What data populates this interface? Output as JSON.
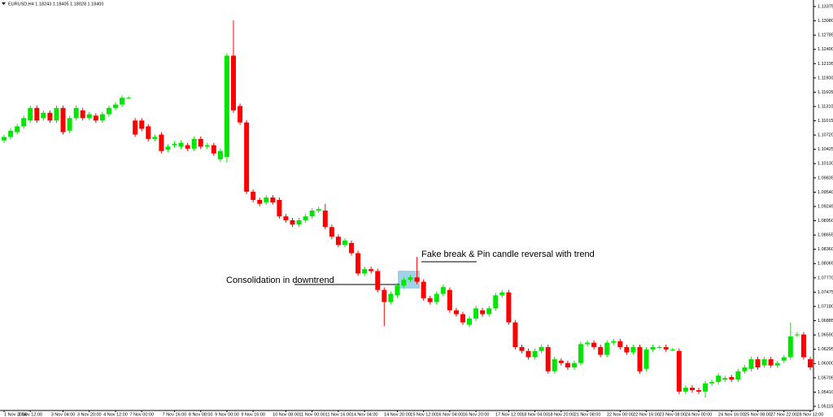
{
  "chart_data": {
    "type": "candlestick",
    "symbol": "EURUSD,H4  1.18243 1.18405 1.18028 1.18400",
    "annotations": [
      "Consolidation in downtrend",
      "Fake break & Pin candle reversal with trend"
    ],
    "up_color": "#00e600",
    "down_color": "#ff0000",
    "ylim": [
      1.0503,
      1.1351
    ],
    "yticks": [
      {
        "value": 1.13375,
        "label": "1.13375"
      },
      {
        "value": 1.1308,
        "label": "1.13080"
      },
      {
        "value": 1.12785,
        "label": "1.12785"
      },
      {
        "value": 1.1249,
        "label": "1.12490"
      },
      {
        "value": 1.12195,
        "label": "1.12195"
      },
      {
        "value": 1.119,
        "label": "1.11900"
      },
      {
        "value": 1.11605,
        "label": "1.11605"
      },
      {
        "value": 1.1131,
        "label": "1.11310"
      },
      {
        "value": 1.11015,
        "label": "1.11015"
      },
      {
        "value": 1.1072,
        "label": "1.10720"
      },
      {
        "value": 1.10425,
        "label": "1.10425"
      },
      {
        "value": 1.1013,
        "label": "1.10130"
      },
      {
        "value": 1.09835,
        "label": "1.09835"
      },
      {
        "value": 1.0954,
        "label": "1.09540"
      },
      {
        "value": 1.09245,
        "label": "1.09245"
      },
      {
        "value": 1.0895,
        "label": "1.08950"
      },
      {
        "value": 1.08655,
        "label": "1.08655"
      },
      {
        "value": 1.0836,
        "label": "1.08360"
      },
      {
        "value": 1.08065,
        "label": "1.08065"
      },
      {
        "value": 1.0777,
        "label": "1.07770"
      },
      {
        "value": 1.07475,
        "label": "1.07475"
      },
      {
        "value": 1.0718,
        "label": "1.07180"
      },
      {
        "value": 1.06885,
        "label": "1.06885"
      },
      {
        "value": 1.0659,
        "label": "1.06590"
      },
      {
        "value": 1.06295,
        "label": "1.06295"
      },
      {
        "value": 1.06,
        "label": "1.06000"
      },
      {
        "value": 1.05705,
        "label": "1.05705"
      },
      {
        "value": 1.0541,
        "label": "1.05410"
      },
      {
        "value": 1.05115,
        "label": "1.05115"
      }
    ],
    "categories": [
      "1 Nov 2016",
      null,
      null,
      null,
      "2 Nov 12:00",
      null,
      null,
      null,
      null,
      "3 Nov 04:00",
      null,
      null,
      null,
      "3 Nov 20:00",
      null,
      null,
      null,
      "4 Nov 12:00",
      null,
      null,
      null,
      "7 Nov 00:00",
      null,
      null,
      null,
      null,
      "7 Nov 16:00",
      null,
      null,
      null,
      "8 Nov 08:00",
      null,
      null,
      null,
      "9 Nov 00:00",
      null,
      null,
      null,
      "9 Nov 16:00",
      null,
      null,
      null,
      null,
      "10 Nov 08:00",
      null,
      null,
      null,
      "11 Nov 00:00",
      null,
      null,
      null,
      "11 Nov 16:00",
      null,
      null,
      null,
      "14 Nov 04:00",
      null,
      null,
      null,
      null,
      "14 Nov 20:00",
      null,
      null,
      null,
      "15 Nov 12:00",
      null,
      null,
      null,
      "16 Nov 04:00",
      null,
      null,
      null,
      "16 Nov 20:00",
      null,
      null,
      null,
      null,
      "17 Nov 12:00",
      null,
      null,
      null,
      "18 Nov 04:00",
      null,
      null,
      null,
      "18 Nov 20:00",
      null,
      null,
      null,
      "21 Nov 08:00",
      null,
      null,
      null,
      null,
      "22 Nov 00:00",
      null,
      null,
      null,
      "22 Nov 16:00",
      null,
      null,
      null,
      "23 Nov 08:00",
      null,
      null,
      null,
      "24 Nov 00:00",
      null,
      null,
      null,
      null,
      "24 Nov 16:00",
      null,
      null,
      null,
      "25 Nov 08:00",
      null,
      null,
      null,
      "27 Nov 22:00",
      null,
      null,
      null,
      "28 Nov 12:00"
    ],
    "open": [
      1.1061,
      1.1068,
      1.1078,
      1.109,
      1.1102,
      1.1128,
      1.1107,
      1.1118,
      1.1102,
      1.1128,
      1.1081,
      1.1107,
      1.1123,
      1.1107,
      1.1112,
      1.1102,
      1.1115,
      1.1128,
      1.1135,
      1.1149,
      1.1102,
      1.1102,
      1.109,
      1.1064,
      1.1073,
      1.1042,
      1.1051,
      1.1048,
      1.1051,
      1.1044,
      1.1064,
      1.1048,
      1.1051,
      1.1022,
      1.1027,
      1.1236,
      1.1132,
      1.1098,
      1.0955,
      1.0938,
      1.0933,
      1.0943,
      1.0938,
      1.0904,
      1.0896,
      1.0887,
      1.0896,
      1.0904,
      1.0916,
      1.0916,
      1.0882,
      1.0862,
      1.0845,
      1.0849,
      1.0828,
      1.0786,
      1.0795,
      1.0791,
      1.0752,
      1.0727,
      1.0741,
      1.0761,
      1.0773,
      1.0778,
      1.0769,
      1.0735,
      1.0727,
      1.0744,
      1.0752,
      1.071,
      1.0702,
      1.068,
      1.0693,
      1.071,
      1.0702,
      1.0714,
      1.0741,
      1.0747,
      1.0685,
      1.0634,
      1.0626,
      1.0613,
      1.0626,
      1.0634,
      1.0584,
      1.0606,
      1.0601,
      1.0592,
      1.0601,
      1.064,
      1.0643,
      1.0634,
      1.0618,
      1.0643,
      1.0646,
      1.0634,
      1.0623,
      1.0634,
      1.0589,
      1.0629,
      1.0634,
      1.0634,
      1.0629,
      1.0626,
      1.0542,
      1.055,
      1.0545,
      1.0542,
      1.0559,
      1.0562,
      1.0567,
      1.0572,
      1.0567,
      1.0584,
      1.0589,
      1.0609,
      1.0596,
      1.0609,
      1.0596,
      1.0606,
      1.0613,
      1.066,
      1.066,
      1.0609
    ],
    "high": [
      1.1073,
      1.1086,
      1.1095,
      1.1112,
      1.1133,
      1.1133,
      1.1123,
      1.1123,
      1.1133,
      1.1133,
      1.1112,
      1.1133,
      1.1128,
      1.112,
      1.1117,
      1.112,
      1.1133,
      1.114,
      1.1154,
      1.1152,
      1.1107,
      1.1107,
      1.1095,
      1.1073,
      1.1078,
      1.1053,
      1.1059,
      1.1061,
      1.1056,
      1.1069,
      1.1069,
      1.1056,
      1.1056,
      1.1044,
      1.1241,
      1.1309,
      1.1137,
      1.1103,
      1.096,
      1.0943,
      1.0948,
      1.0948,
      1.0943,
      1.0909,
      1.0901,
      1.0901,
      1.0909,
      1.0921,
      1.0924,
      1.093,
      1.0887,
      1.0867,
      1.0859,
      1.0854,
      1.0833,
      1.08,
      1.08,
      1.0796,
      1.0757,
      1.0749,
      1.0766,
      1.0778,
      1.0783,
      1.082,
      1.0774,
      1.074,
      1.0749,
      1.0763,
      1.0757,
      1.0715,
      1.0707,
      1.0698,
      1.0719,
      1.0715,
      1.0719,
      1.0746,
      1.0752,
      1.0752,
      1.069,
      1.0639,
      1.0631,
      1.0631,
      1.0639,
      1.0639,
      1.0614,
      1.0611,
      1.0606,
      1.0606,
      1.0645,
      1.0648,
      1.0648,
      1.0639,
      1.0648,
      1.0651,
      1.0651,
      1.0639,
      1.0639,
      1.0639,
      1.0634,
      1.0639,
      1.0637,
      1.0639,
      1.0632,
      1.0631,
      1.0555,
      1.0555,
      1.055,
      1.0564,
      1.0567,
      1.058,
      1.0575,
      1.0577,
      1.0589,
      1.0597,
      1.0614,
      1.0614,
      1.0614,
      1.0614,
      1.0606,
      1.0618,
      1.0685,
      1.0665,
      1.0665,
      1.0614
    ],
    "low": [
      1.1056,
      1.1063,
      1.1073,
      1.1085,
      1.1097,
      1.1097,
      1.1102,
      1.1097,
      1.1097,
      1.1073,
      1.1076,
      1.1102,
      1.1102,
      1.1102,
      1.1097,
      1.1097,
      1.111,
      1.1123,
      1.113,
      1.1146,
      1.1068,
      1.108,
      1.1059,
      1.1059,
      1.1034,
      1.1037,
      1.1046,
      1.1043,
      1.1039,
      1.1039,
      1.1043,
      1.1043,
      1.1029,
      1.1017,
      1.1015,
      1.1118,
      1.1093,
      1.095,
      1.0933,
      1.0925,
      1.0928,
      1.0928,
      1.0899,
      1.0891,
      1.0882,
      1.0882,
      1.0891,
      1.0899,
      1.0911,
      1.0877,
      1.0857,
      1.084,
      1.084,
      1.0823,
      1.0781,
      1.0781,
      1.0786,
      1.0747,
      1.0677,
      1.0722,
      1.0736,
      1.0756,
      1.0768,
      1.0764,
      1.073,
      1.0722,
      1.0722,
      1.0739,
      1.0705,
      1.0697,
      1.068,
      1.0675,
      1.0688,
      1.0697,
      1.0697,
      1.0709,
      1.0736,
      1.068,
      1.0629,
      1.0621,
      1.0608,
      1.0608,
      1.0621,
      1.0579,
      1.0579,
      1.0596,
      1.0587,
      1.0587,
      1.0596,
      1.0635,
      1.0629,
      1.0613,
      1.0613,
      1.0638,
      1.0629,
      1.0618,
      1.0618,
      1.0579,
      1.0584,
      1.0624,
      1.0631,
      1.0624,
      1.0626,
      1.0537,
      1.0537,
      1.054,
      1.0537,
      1.053,
      1.0554,
      1.0557,
      1.0562,
      1.0562,
      1.0562,
      1.0579,
      1.0584,
      1.0587,
      1.0591,
      1.0591,
      1.0591,
      1.0601,
      1.0608,
      1.0655,
      1.0608,
      1.0587
    ],
    "close": [
      1.1068,
      1.1081,
      1.109,
      1.1107,
      1.1128,
      1.1102,
      1.1118,
      1.1102,
      1.1128,
      1.1078,
      1.1107,
      1.1128,
      1.1107,
      1.1115,
      1.1102,
      1.1115,
      1.1128,
      1.1135,
      1.1149,
      1.1149,
      1.1073,
      1.1085,
      1.1064,
      1.1068,
      1.1039,
      1.1048,
      1.1054,
      1.1056,
      1.1044,
      1.1064,
      1.1048,
      1.1051,
      1.1034,
      1.1039,
      1.1236,
      1.1123,
      1.1098,
      1.0955,
      1.0938,
      1.093,
      1.0943,
      1.0933,
      1.0904,
      1.0896,
      1.0887,
      1.0896,
      1.0904,
      1.0916,
      1.0919,
      1.0882,
      1.0862,
      1.0845,
      1.0854,
      1.0828,
      1.0786,
      1.0795,
      1.0791,
      1.0752,
      1.0727,
      1.0744,
      1.0761,
      1.0773,
      1.0778,
      1.0769,
      1.0735,
      1.0727,
      1.0744,
      1.0758,
      1.071,
      1.0702,
      1.0685,
      1.0693,
      1.0714,
      1.0702,
      1.0714,
      1.0741,
      1.0747,
      1.0685,
      1.0634,
      1.0626,
      1.0613,
      1.0626,
      1.0634,
      1.0584,
      1.0609,
      1.0601,
      1.0592,
      1.0601,
      1.064,
      1.0643,
      1.0634,
      1.0618,
      1.0643,
      1.0646,
      1.0634,
      1.0623,
      1.0634,
      1.0584,
      1.0629,
      1.0634,
      1.0634,
      1.0629,
      1.0629,
      1.0542,
      1.055,
      1.0545,
      1.0542,
      1.0559,
      1.0562,
      1.0575,
      1.057,
      1.0567,
      1.0584,
      1.0592,
      1.0609,
      1.0592,
      1.0609,
      1.0596,
      1.0601,
      1.0613,
      1.0656,
      1.066,
      1.0613,
      1.0592
    ]
  }
}
